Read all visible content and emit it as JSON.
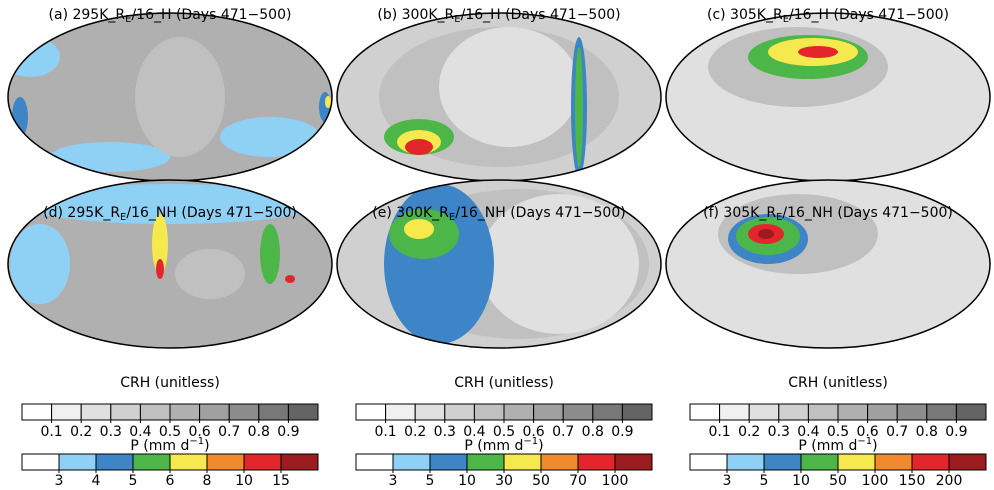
{
  "panels": [
    {
      "prefix": "(a) 295K_R",
      "sub": "E",
      "suffix": "/16_H (Days 471−500)"
    },
    {
      "prefix": "(b) 300K_R",
      "sub": "E",
      "suffix": "/16_H (Days 471−500)"
    },
    {
      "prefix": "(c) 305K_R",
      "sub": "E",
      "suffix": "/16_H (Days 471−500)"
    },
    {
      "prefix": "(d) 295K_R",
      "sub": "E",
      "suffix": "/16_NH (Days 471−500)"
    },
    {
      "prefix": "(e) 300K_R",
      "sub": "E",
      "suffix": "/16_NH (Days 471−500)"
    },
    {
      "prefix": "(f) 305K_R",
      "sub": "E",
      "suffix": "/16_NH (Days 471−500)"
    }
  ],
  "colorbars": [
    {
      "crh": {
        "label": "CRH (unitless)",
        "ticks": [
          0.1,
          0.2,
          0.3,
          0.4,
          0.5,
          0.6,
          0.7,
          0.8,
          0.9
        ],
        "colors": [
          "#ffffff",
          "#f0f0f0",
          "#e0e0e0",
          "#d0d0d0",
          "#c0c0c0",
          "#b0b0b0",
          "#a0a0a0",
          "#8c8c8c",
          "#787878",
          "#646464"
        ]
      },
      "precip": {
        "prefix": "P (mm d",
        "sup": "−1",
        "suffix": ")",
        "ticks": [
          3,
          4,
          5,
          6,
          8,
          10,
          15
        ],
        "colors": [
          "#ffffff",
          "#8fd0f5",
          "#3d85c6",
          "#4cb748",
          "#f5e94e",
          "#f08a2c",
          "#e3262b",
          "#9b1b1e"
        ]
      }
    },
    {
      "crh": {
        "label": "CRH (unitless)",
        "ticks": [
          0.1,
          0.2,
          0.3,
          0.4,
          0.5,
          0.6,
          0.7,
          0.8,
          0.9
        ],
        "colors": [
          "#ffffff",
          "#f0f0f0",
          "#e0e0e0",
          "#d0d0d0",
          "#c0c0c0",
          "#b0b0b0",
          "#a0a0a0",
          "#8c8c8c",
          "#787878",
          "#646464"
        ]
      },
      "precip": {
        "prefix": "P (mm d",
        "sup": "−1",
        "suffix": ")",
        "ticks": [
          3,
          5,
          10,
          30,
          50,
          70,
          100
        ],
        "colors": [
          "#ffffff",
          "#8fd0f5",
          "#3d85c6",
          "#4cb748",
          "#f5e94e",
          "#f08a2c",
          "#e3262b",
          "#9b1b1e"
        ]
      }
    },
    {
      "crh": {
        "label": "CRH (unitless)",
        "ticks": [
          0.1,
          0.2,
          0.3,
          0.4,
          0.5,
          0.6,
          0.7,
          0.8,
          0.9
        ],
        "colors": [
          "#ffffff",
          "#f0f0f0",
          "#e0e0e0",
          "#d0d0d0",
          "#c0c0c0",
          "#b0b0b0",
          "#a0a0a0",
          "#8c8c8c",
          "#787878",
          "#646464"
        ]
      },
      "precip": {
        "prefix": "P (mm d",
        "sup": "−1",
        "suffix": ")",
        "ticks": [
          3,
          5,
          10,
          50,
          100,
          150,
          200
        ],
        "colors": [
          "#ffffff",
          "#8fd0f5",
          "#3d85c6",
          "#4cb748",
          "#f5e94e",
          "#f08a2c",
          "#e3262b",
          "#9b1b1e"
        ]
      }
    }
  ]
}
